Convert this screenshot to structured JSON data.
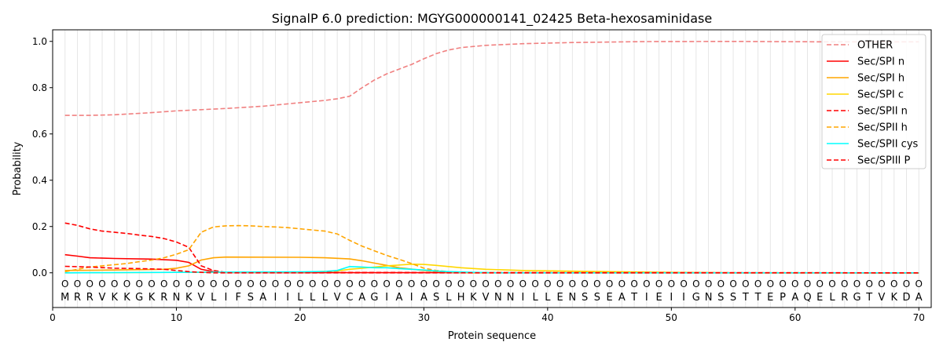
{
  "chart_data": {
    "type": "line",
    "title": "SignalP 6.0 prediction: MGYG000000141_02425 Beta-hexosaminidase",
    "xlabel": "Protein sequence",
    "ylabel": "Probability",
    "xlim": [
      0,
      71
    ],
    "ylim": [
      -0.15,
      1.05
    ],
    "xticks": [
      0,
      10,
      20,
      30,
      40,
      50,
      60,
      70
    ],
    "yticks": [
      "0.0",
      "0.2",
      "0.4",
      "0.6",
      "0.8",
      "1.0"
    ],
    "grid": "vertical lines at every residue",
    "legend_position": "top-right",
    "sequence": [
      "M",
      "R",
      "R",
      "V",
      "K",
      "K",
      "G",
      "K",
      "R",
      "N",
      "K",
      "V",
      "L",
      "I",
      "F",
      "S",
      "A",
      "I",
      "I",
      "L",
      "L",
      "L",
      "V",
      "C",
      "A",
      "G",
      "I",
      "A",
      "I",
      "A",
      "S",
      "L",
      "H",
      "K",
      "V",
      "N",
      "N",
      "I",
      "L",
      "L",
      "E",
      "N",
      "S",
      "S",
      "E",
      "A",
      "T",
      "I",
      "E",
      "I",
      "I",
      "G",
      "N",
      "S",
      "S",
      "T",
      "T",
      "E",
      "P",
      "A",
      "Q",
      "E",
      "L",
      "R",
      "G",
      "T",
      "V",
      "K",
      "D",
      "A"
    ],
    "predicted_label": "O",
    "series": [
      {
        "name": "OTHER",
        "color": "#f08080",
        "dash": true,
        "points": [
          [
            1,
            0.68
          ],
          [
            3,
            0.68
          ],
          [
            5,
            0.683
          ],
          [
            8,
            0.692
          ],
          [
            10,
            0.7
          ],
          [
            14,
            0.71
          ],
          [
            17,
            0.72
          ],
          [
            20,
            0.735
          ],
          [
            22,
            0.745
          ],
          [
            23,
            0.752
          ],
          [
            24,
            0.763
          ],
          [
            25,
            0.8
          ],
          [
            26,
            0.833
          ],
          [
            27,
            0.86
          ],
          [
            28,
            0.88
          ],
          [
            29,
            0.9
          ],
          [
            30,
            0.925
          ],
          [
            31,
            0.947
          ],
          [
            32,
            0.963
          ],
          [
            33,
            0.973
          ],
          [
            35,
            0.983
          ],
          [
            38,
            0.99
          ],
          [
            42,
            0.995
          ],
          [
            48,
            0.999
          ],
          [
            55,
            1.0
          ],
          [
            62,
            0.998
          ],
          [
            70,
            0.998
          ]
        ]
      },
      {
        "name": "Sec/SPI n",
        "color": "#ff0000",
        "dash": false,
        "points": [
          [
            1,
            0.078
          ],
          [
            2,
            0.072
          ],
          [
            3,
            0.065
          ],
          [
            5,
            0.062
          ],
          [
            8,
            0.059
          ],
          [
            10,
            0.054
          ],
          [
            11,
            0.045
          ],
          [
            12,
            0.015
          ],
          [
            13,
            0.005
          ],
          [
            14,
            0.001
          ],
          [
            70,
            0
          ]
        ]
      },
      {
        "name": "Sec/SPI h",
        "color": "#ffa500",
        "dash": false,
        "points": [
          [
            1,
            0.01
          ],
          [
            5,
            0.012
          ],
          [
            9,
            0.015
          ],
          [
            10,
            0.02
          ],
          [
            11,
            0.03
          ],
          [
            12,
            0.055
          ],
          [
            13,
            0.065
          ],
          [
            14,
            0.068
          ],
          [
            20,
            0.067
          ],
          [
            22,
            0.065
          ],
          [
            24,
            0.06
          ],
          [
            25,
            0.052
          ],
          [
            26,
            0.042
          ],
          [
            27,
            0.032
          ],
          [
            28,
            0.022
          ],
          [
            30,
            0.01
          ],
          [
            32,
            0.003
          ],
          [
            34,
            0
          ],
          [
            70,
            0
          ]
        ]
      },
      {
        "name": "Sec/SPI c",
        "color": "#ffd700",
        "dash": false,
        "points": [
          [
            1,
            0
          ],
          [
            10,
            0.002
          ],
          [
            20,
            0.003
          ],
          [
            23,
            0.008
          ],
          [
            24,
            0.015
          ],
          [
            25,
            0.02
          ],
          [
            27,
            0.03
          ],
          [
            29,
            0.037
          ],
          [
            30,
            0.036
          ],
          [
            31,
            0.032
          ],
          [
            33,
            0.022
          ],
          [
            35,
            0.015
          ],
          [
            38,
            0.01
          ],
          [
            41,
            0.008
          ],
          [
            45,
            0.005
          ],
          [
            50,
            0.002
          ],
          [
            55,
            0
          ],
          [
            70,
            0
          ]
        ]
      },
      {
        "name": "Sec/SPII n",
        "color": "#ff0000",
        "dash": true,
        "points": [
          [
            1,
            0.215
          ],
          [
            2,
            0.205
          ],
          [
            3,
            0.19
          ],
          [
            4,
            0.18
          ],
          [
            5,
            0.175
          ],
          [
            6,
            0.17
          ],
          [
            7,
            0.163
          ],
          [
            8,
            0.157
          ],
          [
            9,
            0.148
          ],
          [
            10,
            0.133
          ],
          [
            11,
            0.11
          ],
          [
            12,
            0.03
          ],
          [
            13,
            0.01
          ],
          [
            14,
            0.002
          ],
          [
            70,
            0
          ]
        ]
      },
      {
        "name": "Sec/SPII h",
        "color": "#ffa500",
        "dash": true,
        "points": [
          [
            1,
            0.005
          ],
          [
            2,
            0.015
          ],
          [
            3,
            0.025
          ],
          [
            4,
            0.03
          ],
          [
            5,
            0.035
          ],
          [
            6,
            0.04
          ],
          [
            7,
            0.048
          ],
          [
            8,
            0.055
          ],
          [
            9,
            0.065
          ],
          [
            10,
            0.08
          ],
          [
            11,
            0.1
          ],
          [
            12,
            0.175
          ],
          [
            13,
            0.198
          ],
          [
            14,
            0.203
          ],
          [
            15,
            0.204
          ],
          [
            16,
            0.203
          ],
          [
            17,
            0.2
          ],
          [
            18,
            0.198
          ],
          [
            19,
            0.195
          ],
          [
            20,
            0.19
          ],
          [
            21,
            0.185
          ],
          [
            22,
            0.18
          ],
          [
            23,
            0.168
          ],
          [
            24,
            0.14
          ],
          [
            25,
            0.115
          ],
          [
            26,
            0.095
          ],
          [
            27,
            0.075
          ],
          [
            28,
            0.058
          ],
          [
            29,
            0.04
          ],
          [
            30,
            0.02
          ],
          [
            31,
            0.01
          ],
          [
            32,
            0.005
          ],
          [
            34,
            0.001
          ],
          [
            70,
            0
          ]
        ]
      },
      {
        "name": "Sec/SPII cys",
        "color": "#00ffff",
        "dash": false,
        "points": [
          [
            1,
            0
          ],
          [
            10,
            0.002
          ],
          [
            20,
            0.004
          ],
          [
            22,
            0.006
          ],
          [
            23,
            0.01
          ],
          [
            24,
            0.027
          ],
          [
            25,
            0.025
          ],
          [
            26,
            0.022
          ],
          [
            27,
            0.022
          ],
          [
            28,
            0.018
          ],
          [
            29,
            0.015
          ],
          [
            30,
            0.012
          ],
          [
            31,
            0.008
          ],
          [
            32,
            0.005
          ],
          [
            34,
            0.002
          ],
          [
            36,
            0
          ],
          [
            70,
            0
          ]
        ]
      },
      {
        "name": "Sec/SPIII P",
        "color": "#ff0000",
        "dash": true,
        "points": [
          [
            1,
            0.028
          ],
          [
            3,
            0.025
          ],
          [
            5,
            0.02
          ],
          [
            7,
            0.018
          ],
          [
            9,
            0.015
          ],
          [
            10,
            0.01
          ],
          [
            11,
            0.005
          ],
          [
            12,
            0.002
          ],
          [
            13,
            0
          ],
          [
            70,
            0
          ]
        ]
      }
    ]
  }
}
